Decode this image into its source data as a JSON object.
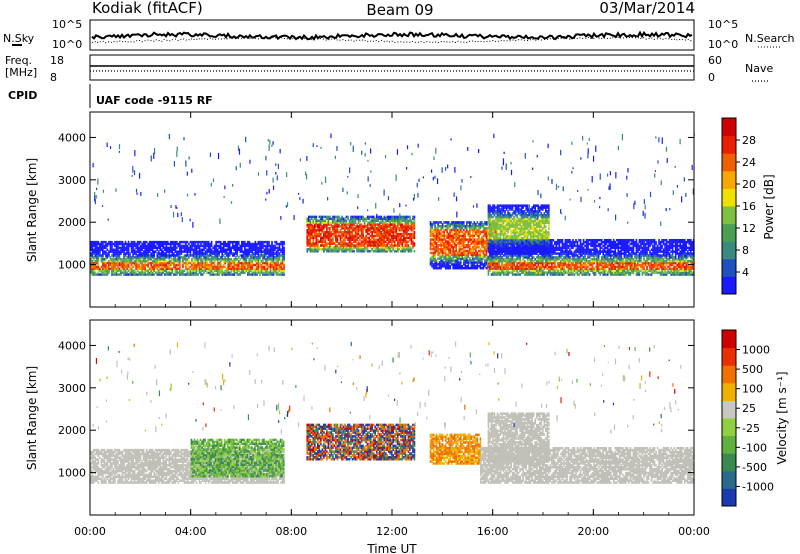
{
  "header": {
    "station": "Kodiak (fitACF)",
    "beam": "Beam 09",
    "date": "03/Mar/2014"
  },
  "status_panel": {
    "left_label_top": "N.Sky",
    "left_scale_top": "10^5",
    "left_scale_bottom": "10^0",
    "right_label": "N.Search",
    "right_scale_top": "10^5",
    "right_scale_bottom": "10^0",
    "freq_label_1": "Freq.",
    "freq_label_2": "[MHz]",
    "freq_ticks": [
      "18",
      "8"
    ],
    "nave_label": "Nave",
    "nave_ticks": [
      "60",
      "0"
    ],
    "cpid_label": "CPID",
    "cpid_text": "UAF code -9115 RF"
  },
  "colors": {
    "power_scale": [
      "#1a1aff",
      "#2050c0",
      "#3a8a80",
      "#4aa050",
      "#80c040",
      "#f0e000",
      "#f8a800",
      "#f06000",
      "#e82000",
      "#d00000"
    ],
    "velocity_scale": [
      "#1a3ab0",
      "#2a6a8a",
      "#3a8a50",
      "#60b040",
      "#90d040",
      "#c8c8c0",
      "#f0b000",
      "#f07000",
      "#e83000",
      "#d00000"
    ],
    "ground_scatter": "#c0c0b8"
  },
  "chart_data": [
    {
      "type": "heatmap",
      "name": "power",
      "ylabel": "Slant Range [km]",
      "xlabel": "",
      "x_ticks": [
        "00:00",
        "04:00",
        "08:00",
        "12:00",
        "16:00",
        "20:00",
        "00:00"
      ],
      "x_range_hours": [
        0,
        24
      ],
      "y_ticks": [
        1000,
        2000,
        3000,
        4000
      ],
      "ylim": [
        0,
        4600
      ],
      "colorbar_label": "Power [dB]",
      "colorbar_ticks": [
        "28",
        "24",
        "20",
        "16",
        "12",
        "8",
        "4"
      ],
      "colorbar_range": [
        0,
        30
      ],
      "bands": [
        {
          "t0": 0.0,
          "t1": 7.7,
          "r0": 750,
          "r1": 1550,
          "peak": [
            850,
            1050
          ],
          "max_db": 26
        },
        {
          "t0": 8.6,
          "t1": 12.9,
          "r0": 1300,
          "r1": 2150,
          "peak": [
            1400,
            1950
          ],
          "max_db": 28
        },
        {
          "t0": 13.5,
          "t1": 16.2,
          "r0": 900,
          "r1": 2000,
          "peak": [
            1200,
            1800
          ],
          "max_db": 26
        },
        {
          "t0": 15.8,
          "t1": 24.0,
          "r0": 750,
          "r1": 1600,
          "peak": [
            850,
            1050
          ],
          "max_db": 27
        },
        {
          "t0": 15.8,
          "t1": 18.2,
          "r0": 1250,
          "r1": 2400,
          "peak": [
            1600,
            2100
          ],
          "max_db": 16
        }
      ]
    },
    {
      "type": "heatmap",
      "name": "velocity",
      "ylabel": "Slant Range [km]",
      "xlabel": "Time UT",
      "x_ticks": [
        "00:00",
        "04:00",
        "08:00",
        "12:00",
        "16:00",
        "20:00",
        "00:00"
      ],
      "x_range_hours": [
        0,
        24
      ],
      "y_ticks": [
        1000,
        2000,
        3000,
        4000
      ],
      "ylim": [
        0,
        4600
      ],
      "colorbar_label": "Velocity [m s⁻¹]",
      "colorbar_ticks": [
        "1000",
        "500",
        "100",
        "25",
        "-25",
        "-100",
        "-500",
        "-1000"
      ],
      "bands": [
        {
          "t0": 0.0,
          "t1": 7.7,
          "r0": 750,
          "r1": 1550,
          "kind": "ground"
        },
        {
          "t0": 4.0,
          "t1": 7.7,
          "r0": 900,
          "r1": 1800,
          "kind": "green"
        },
        {
          "t0": 8.6,
          "t1": 12.9,
          "r0": 1300,
          "r1": 2150,
          "kind": "mixed"
        },
        {
          "t0": 13.5,
          "t1": 15.5,
          "r0": 1200,
          "r1": 1900,
          "kind": "orange"
        },
        {
          "t0": 15.5,
          "t1": 24.0,
          "r0": 750,
          "r1": 1600,
          "kind": "ground"
        },
        {
          "t0": 15.8,
          "t1": 18.2,
          "r0": 1250,
          "r1": 2400,
          "kind": "ground"
        }
      ]
    }
  ]
}
